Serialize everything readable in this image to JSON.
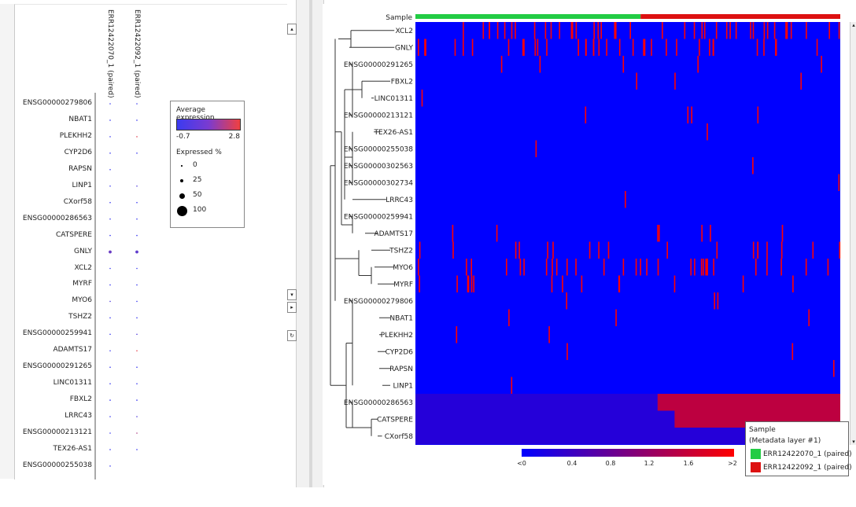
{
  "dot_plot": {
    "columns": [
      "ERR12422070_1 (paired)",
      "ERR12422092_1 (paired)"
    ],
    "legend": {
      "title": "Average expression",
      "min_label": "-0.7",
      "max_label": "2.8",
      "size_title": "Expressed %",
      "size_labels": [
        "0",
        "25",
        "50",
        "100"
      ],
      "low_color": "#3b3bf0",
      "high_color": "#f04040"
    }
  },
  "chart_data": [
    {
      "type": "scatter",
      "title": "",
      "xlabel": "",
      "ylabel": "",
      "x": [
        "ERR12422070_1 (paired)",
        "ERR12422092_1 (paired)"
      ],
      "genes": [
        "ENSG00000279806",
        "NBAT1",
        "PLEKHH2",
        "CYP2D6",
        "RAPSN",
        "LINP1",
        "CXorf58",
        "ENSG00000286563",
        "CATSPERE",
        "GNLY",
        "XCL2",
        "MYRF",
        "MYO6",
        "TSHZ2",
        "ENSG00000259941",
        "ADAMTS17",
        "ENSG00000291265",
        "LINC01311",
        "FBXL2",
        "LRRC43",
        "ENSG00000213121",
        "TEX26-AS1",
        "ENSG00000255038"
      ],
      "series": [
        {
          "name": "ERR12422070_1 (paired)",
          "avg_expression": [
            -0.7,
            -0.7,
            -0.7,
            -0.7,
            -0.7,
            -0.7,
            -0.7,
            -0.7,
            -0.7,
            0.2,
            -0.7,
            -0.7,
            -0.3,
            -0.7,
            -0.7,
            -0.7,
            -0.7,
            -0.7,
            -0.7,
            -0.7,
            -0.7,
            -0.7,
            -0.7
          ],
          "expressed_pct": [
            1,
            1,
            1,
            1,
            1,
            1,
            1,
            1,
            1,
            12,
            1,
            1,
            2,
            1,
            1,
            1,
            1,
            1,
            1,
            1,
            1,
            1,
            1
          ]
        },
        {
          "name": "ERR12422092_1 (paired)",
          "avg_expression": [
            -0.7,
            -0.7,
            2.5,
            -0.7,
            null,
            -0.3,
            -0.7,
            -0.7,
            -0.7,
            0.0,
            -0.7,
            -0.7,
            -0.7,
            -0.7,
            -0.3,
            2.6,
            -0.7,
            -0.7,
            -0.7,
            -0.3,
            1.5,
            -0.7,
            null
          ],
          "expressed_pct": [
            1,
            1,
            1,
            1,
            0,
            1,
            1,
            1,
            1,
            12,
            1,
            1,
            1,
            1,
            1,
            1,
            1,
            1,
            1,
            1,
            1,
            1,
            0
          ]
        }
      ]
    },
    {
      "type": "heatmap",
      "title": "",
      "annotation_label": "Sample",
      "colorbar_ticks": [
        "<0",
        "0.4",
        "0.8",
        "1.2",
        "1.6",
        ">2"
      ],
      "colorbar_range": [
        0,
        2
      ],
      "rows": [
        "XCL2",
        "GNLY",
        "ENSG00000291265",
        "FBXL2",
        "LINC01311",
        "ENSG00000213121",
        "TEX26-AS1",
        "ENSG00000255038",
        "ENSG00000302563",
        "ENSG00000302734",
        "LRRC43",
        "ENSG00000259941",
        "ADAMTS17",
        "TSHZ2",
        "MYO6",
        "MYRF",
        "ENSG00000279806",
        "NBAT1",
        "PLEKHH2",
        "CYP2D6",
        "RAPSN",
        "LINP1",
        "ENSG00000286563",
        "CATSPERE",
        "CXorf58"
      ],
      "samples": [
        {
          "name": "ERR12422070_1 (paired)",
          "color": "#22cc44",
          "fraction": 0.53
        },
        {
          "name": "ERR12422092_1 (paired)",
          "color": "#dd1111",
          "fraction": 0.47
        }
      ],
      "red_line_counts": [
        42,
        36,
        5,
        3,
        1,
        4,
        1,
        1,
        1,
        1,
        1,
        0,
        7,
        18,
        30,
        14,
        3,
        3,
        2,
        2,
        1,
        1,
        0,
        0,
        0
      ],
      "row_base_values": [
        0,
        0,
        0,
        0,
        0,
        0,
        0,
        0,
        0,
        0,
        0,
        0,
        0,
        0,
        0,
        0,
        0,
        0,
        0,
        0,
        0,
        0,
        0.3,
        0.3,
        0.3
      ],
      "high_block_rows": {
        "ENSG00000286563": 1.5,
        "CATSPERE": 1.5
      },
      "legend_title": "Sample",
      "legend_subtitle": "(Metadata layer #1)"
    }
  ],
  "colors": {
    "heat_low": "#0000ff",
    "heat_mid": "#7b0080",
    "heat_high": "#ff0000",
    "dendrogram": "#333333"
  }
}
